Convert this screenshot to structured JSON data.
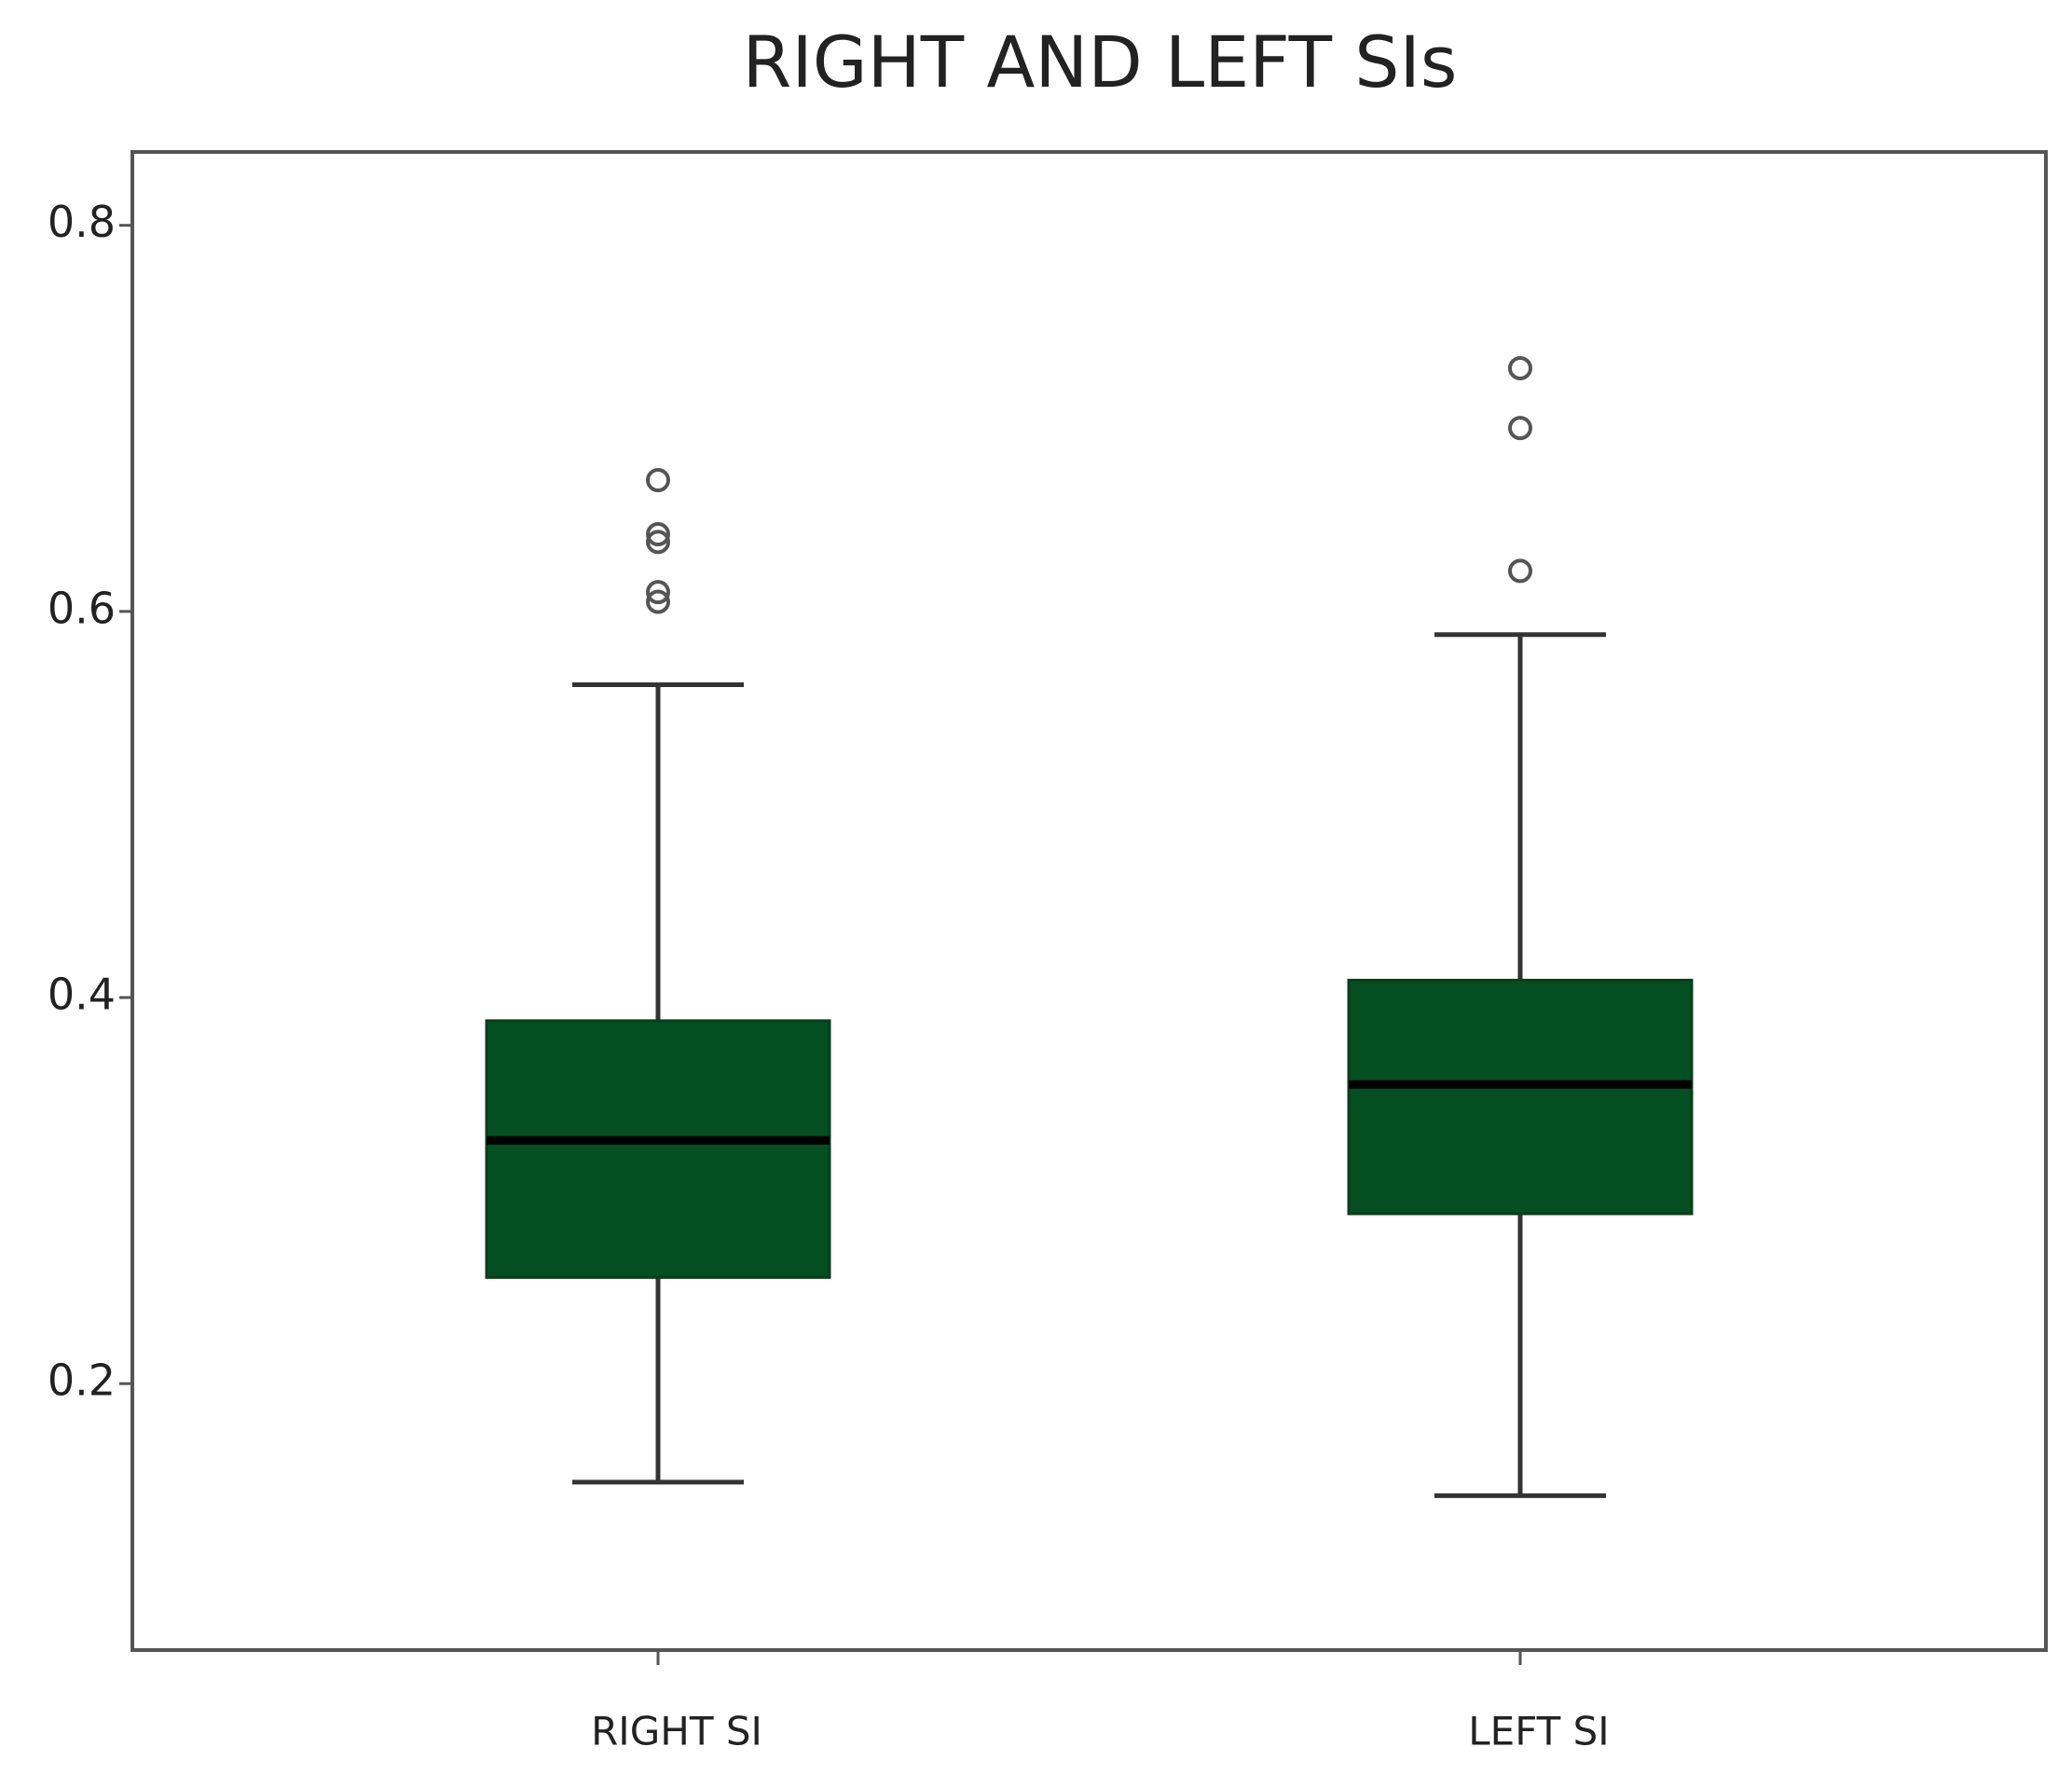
{
  "chart_data": {
    "type": "box",
    "title": "RIGHT AND LEFT SIs",
    "categories": [
      "RIGHT SI",
      "LEFT SI"
    ],
    "color": "#034f22",
    "boxes": [
      {
        "whisker_low": 0.149,
        "q1": 0.255,
        "median": 0.326,
        "q3": 0.388,
        "whisker_high": 0.562,
        "outliers": [
          0.668,
          0.64,
          0.636,
          0.61,
          0.605
        ]
      },
      {
        "whisker_low": 0.142,
        "q1": 0.288,
        "median": 0.355,
        "q3": 0.409,
        "whisker_high": 0.588,
        "outliers": [
          0.726,
          0.695,
          0.621
        ]
      }
    ],
    "ylim": [
      0.062,
      0.838
    ],
    "yticks": [
      0.2,
      0.4,
      0.6,
      0.8
    ],
    "grid": false
  }
}
